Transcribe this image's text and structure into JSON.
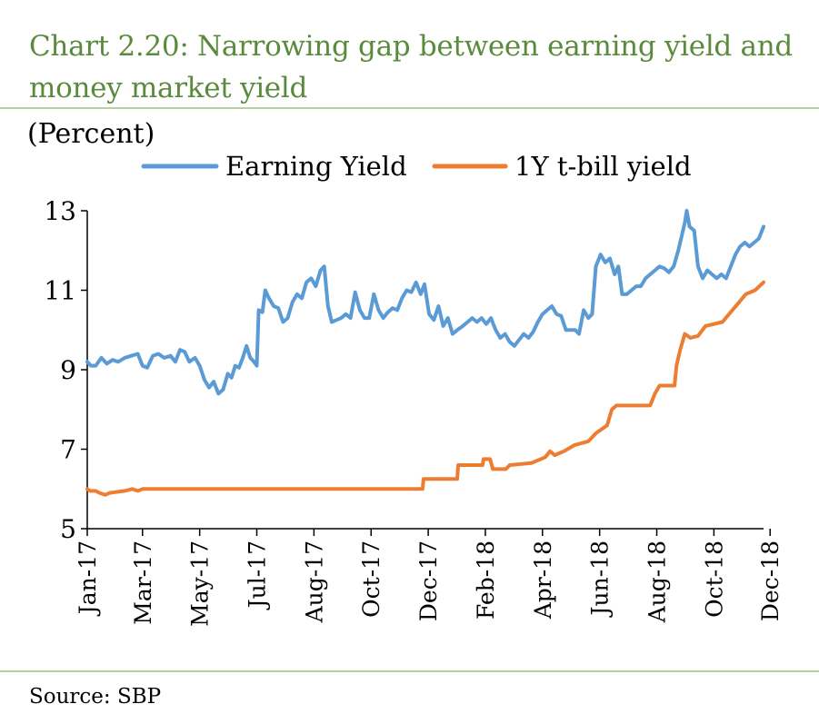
{
  "title_lines": [
    "Chart 2.20: Narrowing gap between earning yield and",
    "money market yield"
  ],
  "unit_label": "(Percent)",
  "source": "Source:  SBP",
  "colors": {
    "title": "#5a8a3c",
    "rule": "#b7cf9e",
    "earning_yield": "#5b9bd5",
    "tbill_yield": "#ed7d31"
  },
  "chart_data": {
    "type": "line",
    "title": "Chart 2.20: Narrowing gap between earning yield and money market yield",
    "ylabel": "(Percent)",
    "xlabel": "",
    "ylim": [
      5,
      13
    ],
    "yticks": [
      5,
      7,
      9,
      11,
      13
    ],
    "x_axis": "date",
    "xlim": [
      "2017-01-01",
      "2018-12-24"
    ],
    "xticks": [
      {
        "date": "2017-01-01",
        "label": "Jan-17"
      },
      {
        "date": "2017-03-01",
        "label": "Mar-17"
      },
      {
        "date": "2017-05-01",
        "label": "May-17"
      },
      {
        "date": "2017-07-01",
        "label": "Jul-17"
      },
      {
        "date": "2017-08-31",
        "label": "Aug-17"
      },
      {
        "date": "2017-10-31",
        "label": "Oct-17"
      },
      {
        "date": "2017-12-31",
        "label": "Dec-17"
      },
      {
        "date": "2018-03-02",
        "label": "Feb-18"
      },
      {
        "date": "2018-05-02",
        "label": "Apr-18"
      },
      {
        "date": "2018-07-02",
        "label": "Jun-18"
      },
      {
        "date": "2018-09-01",
        "label": "Aug-18"
      },
      {
        "date": "2018-11-01",
        "label": "Oct-18"
      },
      {
        "date": "2018-12-31",
        "label": "Dec-18"
      }
    ],
    "legend_position": "top",
    "grid": false,
    "series": [
      {
        "name": "Earning Yield",
        "color": "#5b9bd5",
        "points": [
          [
            "2017-01-01",
            9.2
          ],
          [
            "2017-01-05",
            9.1
          ],
          [
            "2017-01-10",
            9.1
          ],
          [
            "2017-01-16",
            9.3
          ],
          [
            "2017-01-22",
            9.15
          ],
          [
            "2017-01-28",
            9.25
          ],
          [
            "2017-02-03",
            9.2
          ],
          [
            "2017-02-10",
            9.3
          ],
          [
            "2017-02-17",
            9.35
          ],
          [
            "2017-02-24",
            9.4
          ],
          [
            "2017-03-01",
            9.1
          ],
          [
            "2017-03-06",
            9.05
          ],
          [
            "2017-03-12",
            9.35
          ],
          [
            "2017-03-18",
            9.4
          ],
          [
            "2017-03-24",
            9.3
          ],
          [
            "2017-03-31",
            9.35
          ],
          [
            "2017-04-05",
            9.2
          ],
          [
            "2017-04-10",
            9.5
          ],
          [
            "2017-04-15",
            9.45
          ],
          [
            "2017-04-20",
            9.2
          ],
          [
            "2017-04-26",
            9.3
          ],
          [
            "2017-05-01",
            9.1
          ],
          [
            "2017-05-06",
            8.75
          ],
          [
            "2017-05-11",
            8.55
          ],
          [
            "2017-05-16",
            8.7
          ],
          [
            "2017-05-21",
            8.4
          ],
          [
            "2017-05-26",
            8.5
          ],
          [
            "2017-05-31",
            8.9
          ],
          [
            "2017-06-04",
            8.8
          ],
          [
            "2017-06-08",
            9.1
          ],
          [
            "2017-06-12",
            9.05
          ],
          [
            "2017-06-16",
            9.3
          ],
          [
            "2017-06-20",
            9.6
          ],
          [
            "2017-06-24",
            9.3
          ],
          [
            "2017-06-28",
            9.2
          ],
          [
            "2017-07-01",
            9.1
          ],
          [
            "2017-07-03",
            10.5
          ],
          [
            "2017-07-07",
            10.45
          ],
          [
            "2017-07-10",
            11.0
          ],
          [
            "2017-07-14",
            10.8
          ],
          [
            "2017-07-19",
            10.6
          ],
          [
            "2017-07-24",
            10.55
          ],
          [
            "2017-07-29",
            10.2
          ],
          [
            "2017-08-03",
            10.3
          ],
          [
            "2017-08-08",
            10.7
          ],
          [
            "2017-08-13",
            10.9
          ],
          [
            "2017-08-18",
            10.8
          ],
          [
            "2017-08-23",
            11.2
          ],
          [
            "2017-08-28",
            11.3
          ],
          [
            "2017-09-02",
            11.1
          ],
          [
            "2017-09-07",
            11.5
          ],
          [
            "2017-09-11",
            11.6
          ],
          [
            "2017-09-15",
            10.6
          ],
          [
            "2017-09-19",
            10.2
          ],
          [
            "2017-09-24",
            10.25
          ],
          [
            "2017-09-29",
            10.3
          ],
          [
            "2017-10-04",
            10.4
          ],
          [
            "2017-10-09",
            10.3
          ],
          [
            "2017-10-14",
            10.95
          ],
          [
            "2017-10-19",
            10.5
          ],
          [
            "2017-10-24",
            10.3
          ],
          [
            "2017-10-29",
            10.3
          ],
          [
            "2017-11-03",
            10.9
          ],
          [
            "2017-11-08",
            10.5
          ],
          [
            "2017-11-13",
            10.3
          ],
          [
            "2017-11-18",
            10.45
          ],
          [
            "2017-11-23",
            10.55
          ],
          [
            "2017-11-28",
            10.5
          ],
          [
            "2017-12-03",
            10.8
          ],
          [
            "2017-12-08",
            11.0
          ],
          [
            "2017-12-13",
            10.95
          ],
          [
            "2017-12-18",
            11.2
          ],
          [
            "2017-12-23",
            10.9
          ],
          [
            "2017-12-27",
            11.15
          ],
          [
            "2018-01-01",
            10.4
          ],
          [
            "2018-01-06",
            10.25
          ],
          [
            "2018-01-11",
            10.6
          ],
          [
            "2018-01-16",
            10.1
          ],
          [
            "2018-01-21",
            10.3
          ],
          [
            "2018-01-26",
            9.9
          ],
          [
            "2018-01-31",
            10.0
          ],
          [
            "2018-02-06",
            10.1
          ],
          [
            "2018-02-11",
            10.2
          ],
          [
            "2018-02-16",
            10.3
          ],
          [
            "2018-02-21",
            10.2
          ],
          [
            "2018-02-26",
            10.3
          ],
          [
            "2018-03-03",
            10.15
          ],
          [
            "2018-03-08",
            10.3
          ],
          [
            "2018-03-13",
            10.0
          ],
          [
            "2018-03-18",
            9.8
          ],
          [
            "2018-03-23",
            9.9
          ],
          [
            "2018-03-28",
            9.7
          ],
          [
            "2018-04-02",
            9.6
          ],
          [
            "2018-04-07",
            9.75
          ],
          [
            "2018-04-12",
            9.9
          ],
          [
            "2018-04-17",
            9.8
          ],
          [
            "2018-04-22",
            9.95
          ],
          [
            "2018-04-27",
            10.2
          ],
          [
            "2018-05-02",
            10.4
          ],
          [
            "2018-05-07",
            10.5
          ],
          [
            "2018-05-12",
            10.6
          ],
          [
            "2018-05-17",
            10.4
          ],
          [
            "2018-05-22",
            10.35
          ],
          [
            "2018-05-27",
            10.0
          ],
          [
            "2018-06-01",
            10.0
          ],
          [
            "2018-06-06",
            10.0
          ],
          [
            "2018-06-10",
            9.9
          ],
          [
            "2018-06-15",
            10.5
          ],
          [
            "2018-06-20",
            10.3
          ],
          [
            "2018-06-24",
            10.4
          ],
          [
            "2018-06-28",
            11.6
          ],
          [
            "2018-07-03",
            11.9
          ],
          [
            "2018-07-08",
            11.7
          ],
          [
            "2018-07-13",
            11.8
          ],
          [
            "2018-07-18",
            11.4
          ],
          [
            "2018-07-22",
            11.6
          ],
          [
            "2018-07-26",
            10.9
          ],
          [
            "2018-07-31",
            10.9
          ],
          [
            "2018-08-05",
            11.0
          ],
          [
            "2018-08-10",
            11.1
          ],
          [
            "2018-08-15",
            11.1
          ],
          [
            "2018-08-20",
            11.3
          ],
          [
            "2018-08-25",
            11.4
          ],
          [
            "2018-08-30",
            11.5
          ],
          [
            "2018-09-04",
            11.6
          ],
          [
            "2018-09-09",
            11.55
          ],
          [
            "2018-09-14",
            11.45
          ],
          [
            "2018-09-19",
            11.6
          ],
          [
            "2018-09-24",
            12.0
          ],
          [
            "2018-09-28",
            12.4
          ],
          [
            "2018-10-01",
            12.7
          ],
          [
            "2018-10-03",
            13.0
          ],
          [
            "2018-10-06",
            12.6
          ],
          [
            "2018-10-11",
            12.5
          ],
          [
            "2018-10-15",
            11.6
          ],
          [
            "2018-10-20",
            11.3
          ],
          [
            "2018-10-25",
            11.5
          ],
          [
            "2018-10-30",
            11.4
          ],
          [
            "2018-11-04",
            11.3
          ],
          [
            "2018-11-09",
            11.4
          ],
          [
            "2018-11-14",
            11.3
          ],
          [
            "2018-11-19",
            11.6
          ],
          [
            "2018-11-24",
            11.9
          ],
          [
            "2018-11-29",
            12.1
          ],
          [
            "2018-12-04",
            12.2
          ],
          [
            "2018-12-09",
            12.1
          ],
          [
            "2018-12-14",
            12.2
          ],
          [
            "2018-12-19",
            12.3
          ],
          [
            "2018-12-24",
            12.6
          ]
        ]
      },
      {
        "name": "1Y t-bill yield",
        "color": "#ed7d31",
        "points": [
          [
            "2017-01-01",
            6.0
          ],
          [
            "2017-01-04",
            5.95
          ],
          [
            "2017-01-10",
            5.95
          ],
          [
            "2017-01-14",
            5.9
          ],
          [
            "2017-01-20",
            5.85
          ],
          [
            "2017-01-25",
            5.9
          ],
          [
            "2017-02-10",
            5.95
          ],
          [
            "2017-02-18",
            6.0
          ],
          [
            "2017-02-24",
            5.95
          ],
          [
            "2017-03-01",
            6.0
          ],
          [
            "2017-12-25",
            6.0
          ],
          [
            "2017-12-26",
            6.25
          ],
          [
            "2018-01-31",
            6.25
          ],
          [
            "2018-02-01",
            6.6
          ],
          [
            "2018-02-27",
            6.6
          ],
          [
            "2018-02-28",
            6.75
          ],
          [
            "2018-03-07",
            6.75
          ],
          [
            "2018-03-10",
            6.5
          ],
          [
            "2018-03-24",
            6.5
          ],
          [
            "2018-03-28",
            6.6
          ],
          [
            "2018-04-20",
            6.65
          ],
          [
            "2018-05-05",
            6.8
          ],
          [
            "2018-05-10",
            6.95
          ],
          [
            "2018-05-15",
            6.85
          ],
          [
            "2018-05-25",
            6.95
          ],
          [
            "2018-06-05",
            7.1
          ],
          [
            "2018-06-20",
            7.2
          ],
          [
            "2018-06-28",
            7.4
          ],
          [
            "2018-07-10",
            7.6
          ],
          [
            "2018-07-15",
            8.0
          ],
          [
            "2018-07-20",
            8.1
          ],
          [
            "2018-08-25",
            8.1
          ],
          [
            "2018-08-30",
            8.4
          ],
          [
            "2018-09-04",
            8.6
          ],
          [
            "2018-09-20",
            8.6
          ],
          [
            "2018-09-22",
            9.1
          ],
          [
            "2018-09-26",
            9.5
          ],
          [
            "2018-10-01",
            9.9
          ],
          [
            "2018-10-07",
            9.8
          ],
          [
            "2018-10-15",
            9.85
          ],
          [
            "2018-10-23",
            10.1
          ],
          [
            "2018-11-10",
            10.2
          ],
          [
            "2018-11-28",
            10.7
          ],
          [
            "2018-12-05",
            10.9
          ],
          [
            "2018-12-15",
            11.0
          ],
          [
            "2018-12-24",
            11.2
          ]
        ]
      }
    ]
  }
}
